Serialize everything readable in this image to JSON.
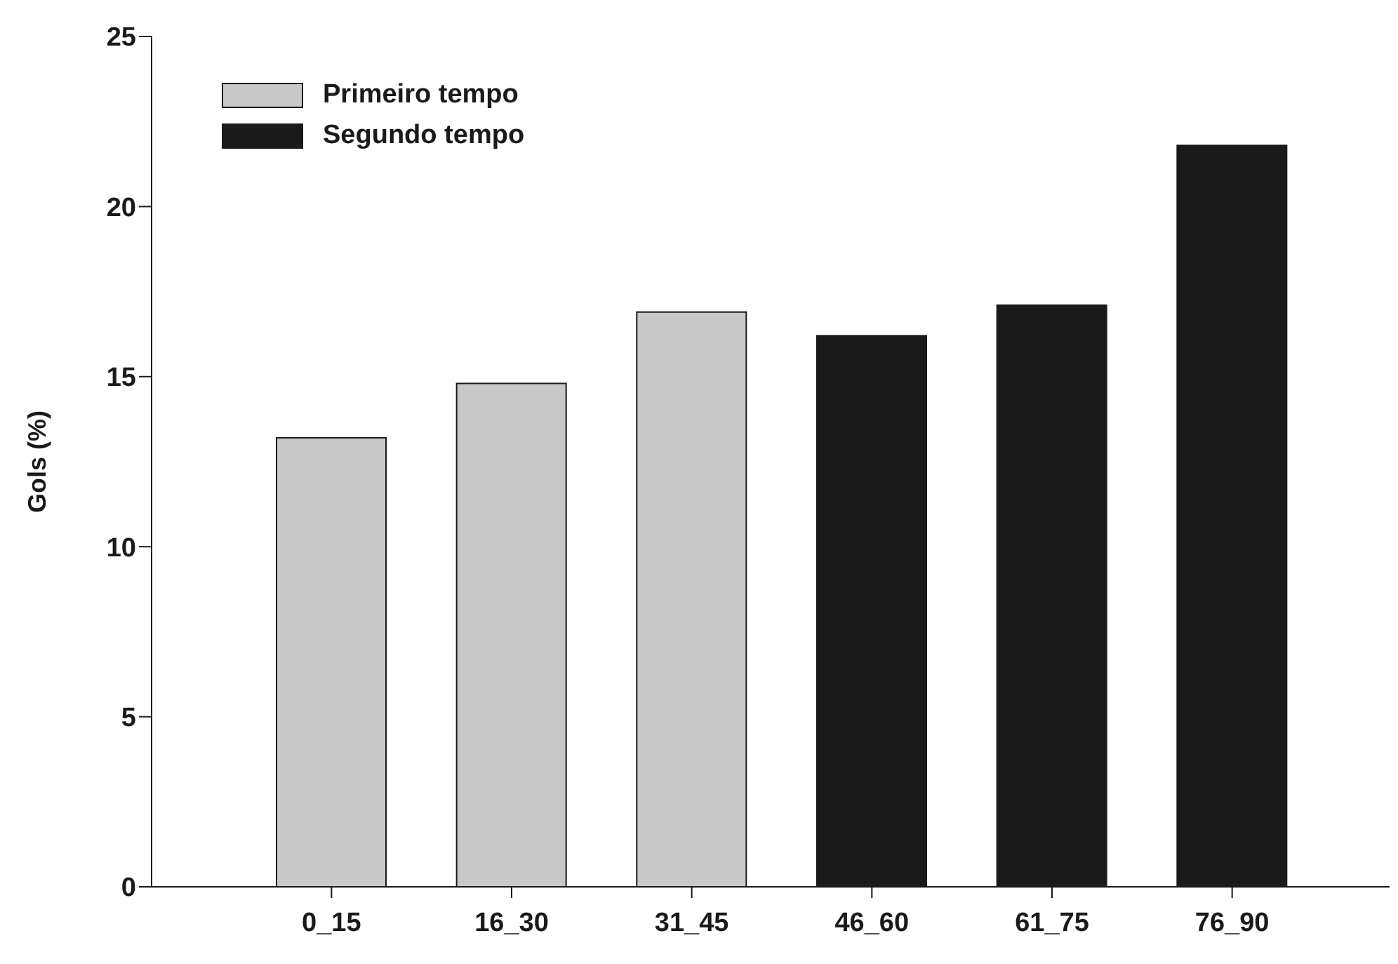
{
  "chart_data": {
    "type": "bar",
    "ylabel": "Gols (%)",
    "categories": [
      "0_15",
      "16_30",
      "31_45",
      "46_60",
      "61_75",
      "76_90"
    ],
    "series": [
      {
        "name": "Primeiro tempo",
        "color": "#c8c8c8",
        "values": [
          13.2,
          14.8,
          16.9,
          null,
          null,
          null
        ]
      },
      {
        "name": "Segundo tempo",
        "color": "#1a1a1a",
        "values": [
          null,
          null,
          null,
          16.2,
          17.1,
          21.8
        ]
      }
    ],
    "ylim": [
      0,
      25
    ],
    "yticks": [
      0,
      5,
      10,
      15,
      20,
      25
    ],
    "grid": false,
    "legend": "top left"
  }
}
